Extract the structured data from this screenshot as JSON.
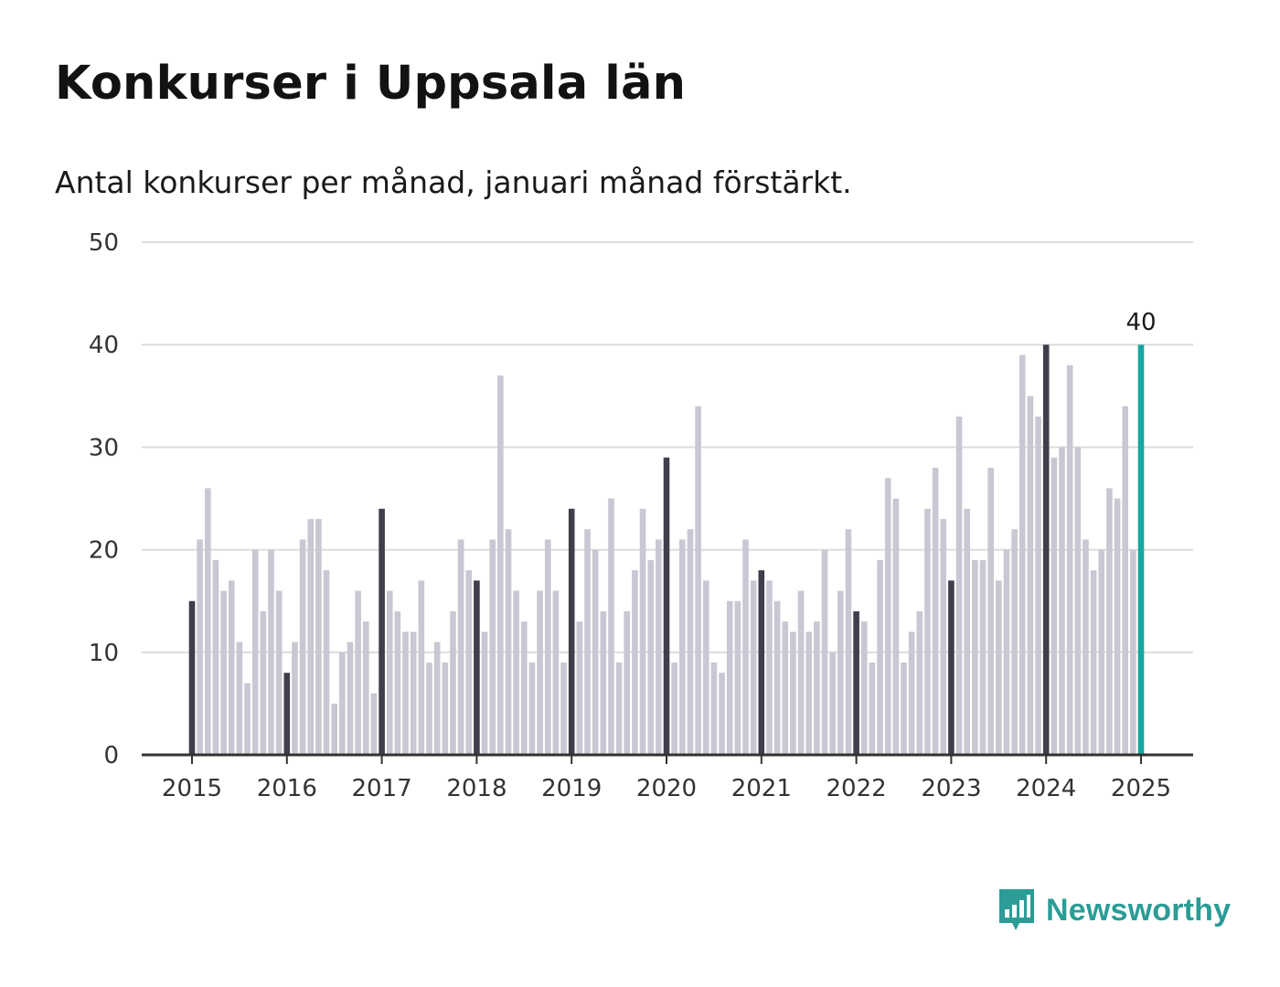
{
  "chart_data": {
    "type": "bar",
    "title": "Konkurser i Uppsala län",
    "subtitle": "Antal konkurser per månad, januari månad förstärkt.",
    "xlabel": "",
    "ylabel": "",
    "ylim": [
      0,
      50
    ],
    "yticks": [
      "0",
      "10",
      "20",
      "30",
      "40",
      "50"
    ],
    "xticks": [
      "2015",
      "2016",
      "2017",
      "2018",
      "2019",
      "2020",
      "2021",
      "2022",
      "2023",
      "2024",
      "2025"
    ],
    "start": "2015-01",
    "values": [
      15,
      21,
      26,
      19,
      16,
      17,
      11,
      7,
      20,
      14,
      20,
      16,
      8,
      11,
      21,
      23,
      23,
      18,
      5,
      10,
      11,
      16,
      13,
      6,
      24,
      16,
      14,
      12,
      12,
      17,
      9,
      11,
      9,
      14,
      21,
      18,
      17,
      12,
      21,
      37,
      22,
      16,
      13,
      9,
      16,
      21,
      16,
      9,
      24,
      13,
      22,
      20,
      14,
      25,
      9,
      14,
      18,
      24,
      19,
      21,
      29,
      9,
      21,
      22,
      34,
      17,
      9,
      8,
      15,
      15,
      21,
      17,
      18,
      17,
      15,
      13,
      12,
      16,
      12,
      13,
      20,
      10,
      16,
      22,
      14,
      13,
      9,
      19,
      27,
      25,
      9,
      12,
      14,
      24,
      28,
      23,
      17,
      33,
      24,
      19,
      19,
      28,
      17,
      20,
      22,
      39,
      35,
      33,
      40,
      29,
      30,
      38,
      30,
      21,
      18,
      20,
      26,
      25,
      34,
      20,
      40
    ],
    "highlight": "januari",
    "last_value_label": "40",
    "grid": true,
    "colors": {
      "january": "#3f3e4c",
      "other": "#c8c7d3",
      "latest": "#17a6a0",
      "grid": "#dcdcdc",
      "axis": "#333333"
    }
  },
  "brand": {
    "name": "Newsworthy",
    "icon": "newsworthy-logo-icon",
    "color": "#2b9c96"
  }
}
